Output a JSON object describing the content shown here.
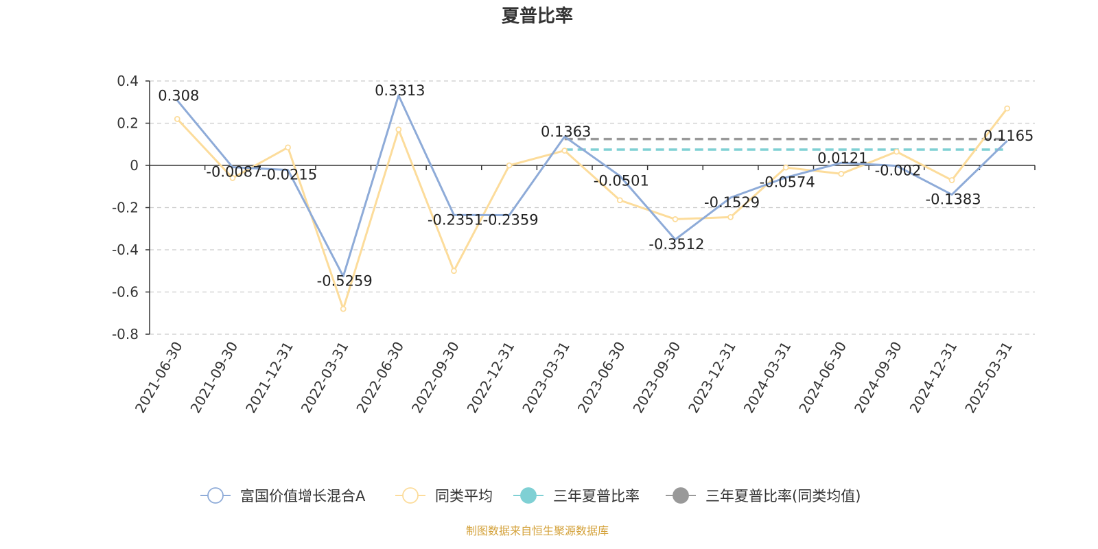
{
  "chart_data": {
    "type": "line",
    "title": "夏普比率",
    "categories": [
      "2021-06-30",
      "2021-09-30",
      "2021-12-31",
      "2022-03-31",
      "2022-06-30",
      "2022-09-30",
      "2022-12-31",
      "2023-03-31",
      "2023-06-30",
      "2023-09-30",
      "2023-12-31",
      "2024-03-31",
      "2024-06-30",
      "2024-09-30",
      "2024-12-31",
      "2025-03-31"
    ],
    "ylim": [
      -0.8,
      0.4
    ],
    "yticks": [
      0.4,
      0.2,
      0,
      -0.2,
      -0.4,
      -0.6,
      -0.8
    ],
    "ytick_labels": [
      "0.4",
      "0.2",
      "0",
      "-0.2",
      "-0.4",
      "-0.6",
      "-0.8"
    ],
    "grid": true,
    "legend_position": "bottom",
    "series": [
      {
        "name": "富国价值增长混合A",
        "color": "#8eabd8",
        "values": [
          0.308,
          -0.0087,
          -0.0215,
          -0.5259,
          0.3313,
          -0.2351,
          -0.2359,
          0.1363,
          -0.0501,
          -0.3512,
          -0.1529,
          -0.0574,
          0.0121,
          -0.002,
          -0.1383,
          0.1165
        ],
        "labels": [
          "0.308",
          "-0.0087",
          "-0.0215",
          "-0.5259",
          "0.3313",
          "-0.2351",
          "-0.2359",
          "0.1363",
          "-0.0501",
          "-0.3512",
          "-0.1529",
          "-0.0574",
          "0.0121",
          "-0.002",
          "-0.1383",
          "0.1165"
        ]
      },
      {
        "name": "同类平均",
        "color": "#fcdc9b",
        "values": [
          0.22,
          -0.06,
          0.085,
          -0.68,
          0.17,
          -0.5,
          0,
          0.07,
          -0.165,
          -0.255,
          -0.245,
          -0.01,
          -0.04,
          0.065,
          -0.07,
          0.27
        ]
      },
      {
        "name": "三年夏普比率",
        "color": "#7fd0d4",
        "type": "reference",
        "value": 0.075,
        "from": "2023-03-31",
        "to": "2025-03-31"
      },
      {
        "name": "三年夏普比率(同类均值)",
        "color": "#999999",
        "type": "reference",
        "value": 0.125,
        "from": "2023-03-31",
        "to": "2025-03-31"
      }
    ]
  },
  "source": "制图数据来自恒生聚源数据库"
}
